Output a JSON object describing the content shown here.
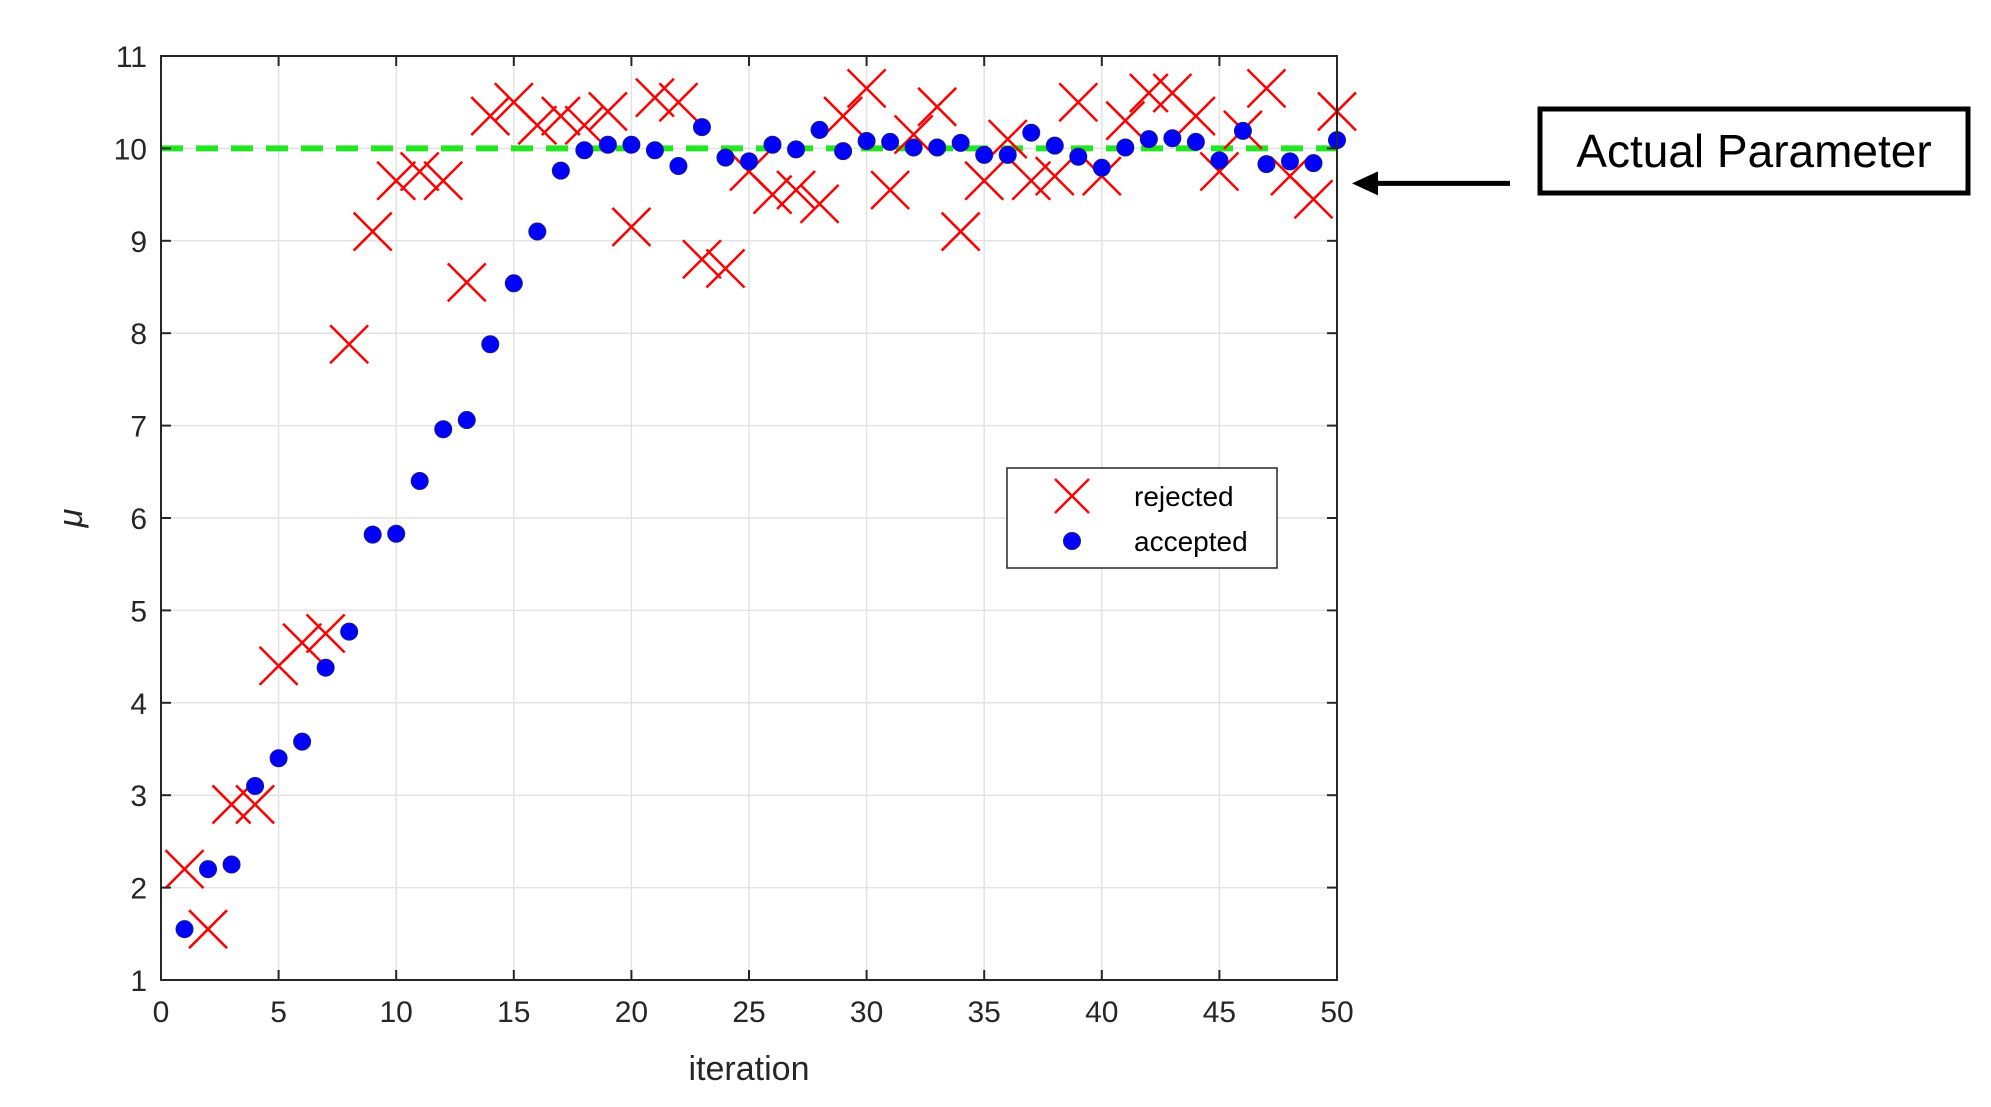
{
  "chart_data": {
    "type": "scatter",
    "xlabel": "iteration",
    "ylabel": "μ",
    "xlim": [
      0,
      50
    ],
    "ylim": [
      1,
      11
    ],
    "xticks": [
      "0",
      "5",
      "10",
      "15",
      "20",
      "25",
      "30",
      "35",
      "40",
      "45",
      "50"
    ],
    "yticks": [
      "1",
      "2",
      "3",
      "4",
      "5",
      "6",
      "7",
      "8",
      "9",
      "10",
      "11"
    ],
    "grid": true,
    "legend_position": "center-right",
    "reference_line": {
      "y": 10,
      "style": "dashed",
      "color": "#22e622"
    },
    "annotation": {
      "text": "Actual Parameter",
      "points_to_y": 10
    },
    "series": [
      {
        "name": "rejected",
        "marker": "x",
        "color": "#ff0000",
        "points": [
          [
            1,
            2.2
          ],
          [
            2,
            1.55
          ],
          [
            3,
            2.9
          ],
          [
            4,
            2.9
          ],
          [
            5,
            4.4
          ],
          [
            6,
            4.65
          ],
          [
            7,
            4.75
          ],
          [
            8,
            7.88
          ],
          [
            9,
            9.1
          ],
          [
            10,
            9.65
          ],
          [
            11,
            9.75
          ],
          [
            12,
            9.65
          ],
          [
            13,
            8.55
          ],
          [
            14,
            10.35
          ],
          [
            15,
            10.5
          ],
          [
            16,
            10.25
          ],
          [
            17,
            10.35
          ],
          [
            18,
            10.25
          ],
          [
            19,
            10.4
          ],
          [
            20,
            9.15
          ],
          [
            21,
            10.55
          ],
          [
            22,
            10.5
          ],
          [
            23,
            8.8
          ],
          [
            24,
            8.7
          ],
          [
            25,
            9.75
          ],
          [
            26,
            9.5
          ],
          [
            27,
            9.55
          ],
          [
            28,
            9.4
          ],
          [
            29,
            10.35
          ],
          [
            30,
            10.65
          ],
          [
            31,
            9.55
          ],
          [
            32,
            10.15
          ],
          [
            33,
            10.45
          ],
          [
            34,
            9.1
          ],
          [
            35,
            9.65
          ],
          [
            36,
            10.1
          ],
          [
            37,
            9.65
          ],
          [
            38,
            9.7
          ],
          [
            39,
            10.5
          ],
          [
            40,
            9.7
          ],
          [
            41,
            10.3
          ],
          [
            42,
            10.6
          ],
          [
            43,
            10.6
          ],
          [
            44,
            10.35
          ],
          [
            45,
            9.75
          ],
          [
            46,
            10.2
          ],
          [
            47,
            10.65
          ],
          [
            48,
            9.7
          ],
          [
            49,
            9.45
          ],
          [
            50,
            10.4
          ]
        ]
      },
      {
        "name": "accepted",
        "marker": "o",
        "color": "#0000ff",
        "points": [
          [
            1,
            1.55
          ],
          [
            2,
            2.2
          ],
          [
            3,
            2.25
          ],
          [
            4,
            3.1
          ],
          [
            5,
            3.4
          ],
          [
            6,
            3.58
          ],
          [
            7,
            4.38
          ],
          [
            8,
            4.77
          ],
          [
            9,
            5.82
          ],
          [
            10,
            5.83
          ],
          [
            11,
            6.4
          ],
          [
            12,
            6.96
          ],
          [
            13,
            7.06
          ],
          [
            14,
            7.88
          ],
          [
            15,
            8.54
          ],
          [
            16,
            9.1
          ],
          [
            17,
            9.76
          ],
          [
            18,
            9.98
          ],
          [
            19,
            10.04
          ],
          [
            20,
            10.04
          ],
          [
            21,
            9.98
          ],
          [
            22,
            9.81
          ],
          [
            23,
            10.23
          ],
          [
            24,
            9.9
          ],
          [
            25,
            9.86
          ],
          [
            26,
            10.04
          ],
          [
            27,
            9.99
          ],
          [
            28,
            10.2
          ],
          [
            29,
            9.97
          ],
          [
            30,
            10.08
          ],
          [
            31,
            10.07
          ],
          [
            32,
            10.01
          ],
          [
            33,
            10.01
          ],
          [
            34,
            10.06
          ],
          [
            35,
            9.93
          ],
          [
            36,
            9.93
          ],
          [
            37,
            10.17
          ],
          [
            38,
            10.03
          ],
          [
            39,
            9.91
          ],
          [
            40,
            9.79
          ],
          [
            41,
            10.01
          ],
          [
            42,
            10.1
          ],
          [
            43,
            10.11
          ],
          [
            44,
            10.07
          ],
          [
            45,
            9.87
          ],
          [
            46,
            10.19
          ],
          [
            47,
            9.83
          ],
          [
            48,
            9.86
          ],
          [
            49,
            9.84
          ],
          [
            50,
            10.09
          ]
        ]
      }
    ]
  }
}
